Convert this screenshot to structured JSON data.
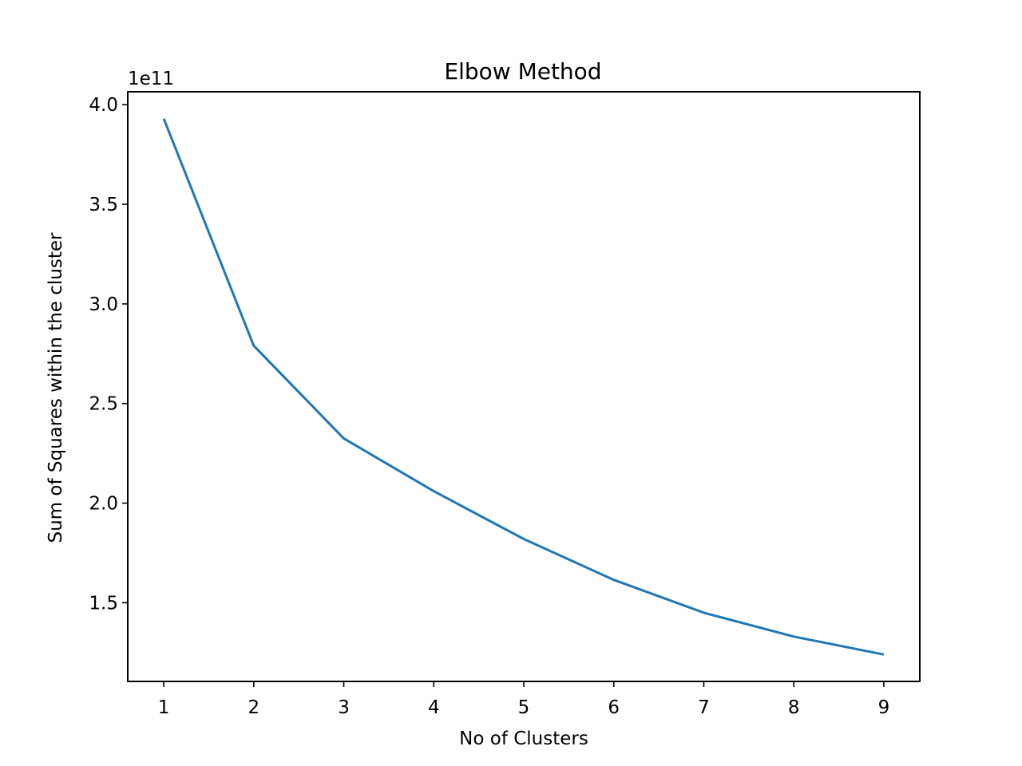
{
  "chart_data": {
    "type": "line",
    "title": "Elbow Method",
    "xlabel": "No of Clusters",
    "ylabel": "Sum of Squares within the cluster",
    "y_offset_label": "1e11",
    "x": [
      1,
      2,
      3,
      4,
      5,
      6,
      7,
      8,
      9
    ],
    "series": [
      {
        "color": "#1f77b4",
        "values": [
          393000000000,
          279000000000,
          232500000000,
          206000000000,
          182000000000,
          161500000000,
          145000000000,
          133000000000,
          124000000000
        ]
      }
    ],
    "xlim": [
      0.6,
      9.4
    ],
    "ylim": [
      110500000000.0,
      406500000000.0
    ],
    "xticks": [
      1,
      2,
      3,
      4,
      5,
      6,
      7,
      8,
      9
    ],
    "xtick_labels": [
      "1",
      "2",
      "3",
      "4",
      "5",
      "6",
      "7",
      "8",
      "9"
    ],
    "yticks": [
      150000000000.0,
      200000000000.0,
      250000000000.0,
      300000000000.0,
      350000000000.0,
      400000000000.0
    ],
    "ytick_labels": [
      "1.5",
      "2.0",
      "2.5",
      "3.0",
      "3.5",
      "4.0"
    ],
    "grid": false,
    "legend": false
  }
}
